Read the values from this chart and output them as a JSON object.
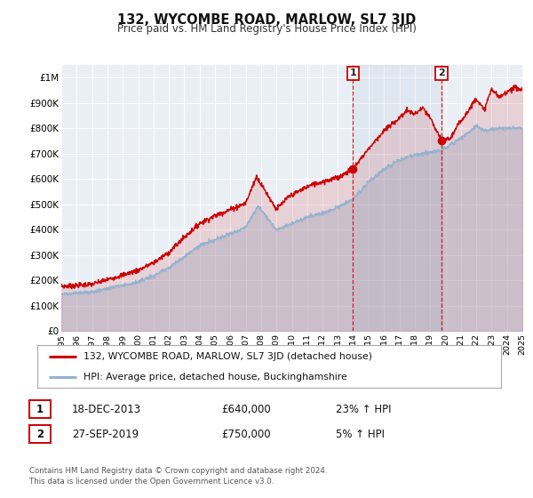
{
  "title": "132, WYCOMBE ROAD, MARLOW, SL7 3JD",
  "subtitle": "Price paid vs. HM Land Registry's House Price Index (HPI)",
  "legend_label1": "132, WYCOMBE ROAD, MARLOW, SL7 3JD (detached house)",
  "legend_label2": "HPI: Average price, detached house, Buckinghamshire",
  "transaction1_date": "18-DEC-2013",
  "transaction1_price": "£640,000",
  "transaction1_hpi": "23% ↑ HPI",
  "transaction2_date": "27-SEP-2019",
  "transaction2_price": "£750,000",
  "transaction2_hpi": "5% ↑ HPI",
  "footer": "Contains HM Land Registry data © Crown copyright and database right 2024.\nThis data is licensed under the Open Government Licence v3.0.",
  "line1_color": "#cc0000",
  "line2_color": "#92b4d0",
  "dot_color": "#cc0000",
  "marker1_x": 2013.97,
  "marker1_y": 640000,
  "marker2_x": 2019.74,
  "marker2_y": 750000,
  "vline1_x": 2013.97,
  "vline2_x": 2019.74,
  "xmin": 1995,
  "xmax": 2025,
  "ymin": 0,
  "ymax": 1050000,
  "background_color": "#ffffff",
  "plot_bg_color": "#eaeff5",
  "grid_color": "#ffffff",
  "yticks": [
    0,
    100000,
    200000,
    300000,
    400000,
    500000,
    600000,
    700000,
    800000,
    900000,
    1000000
  ],
  "ytick_labels": [
    "£0",
    "£100K",
    "£200K",
    "£300K",
    "£400K",
    "£500K",
    "£600K",
    "£700K",
    "£800K",
    "£900K",
    "£1M"
  ]
}
